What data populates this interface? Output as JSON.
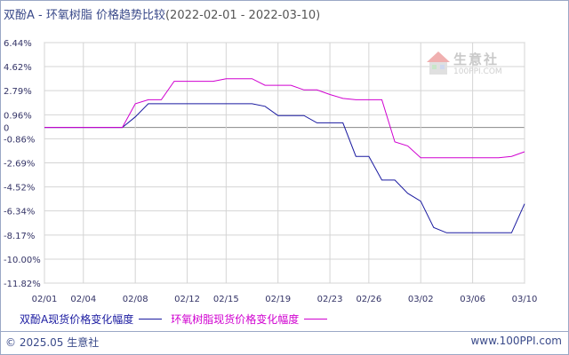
{
  "header": {
    "title": "双酚A - 环氧树脂 价格趋势比较",
    "date_range": "(2022-02-01 - 2022-03-10)"
  },
  "watermark": {
    "name": "生意社",
    "url": "100PPI.COM"
  },
  "colors": {
    "series_a": "#1a1aa0",
    "series_b": "#d000d0",
    "grid": "#d4d4d4",
    "axis_text": "#333366",
    "zero_line": "#888888"
  },
  "footer": {
    "copyright": "© 2025.05 生意社",
    "site": "www.100PPI.com"
  },
  "chart_data": {
    "type": "line",
    "y_ticks": [
      6.44,
      4.62,
      2.79,
      0.96,
      0,
      -0.86,
      -2.69,
      -4.52,
      -6.34,
      -8.17,
      -10.0,
      -11.82
    ],
    "y_tick_labels": [
      "6.44%",
      "4.62%",
      "2.79%",
      "0.96%",
      "0",
      "-0.86%",
      "-2.69%",
      "-4.52%",
      "-6.34%",
      "-8.17%",
      "-10.00%",
      "-11.82%"
    ],
    "ylim": [
      -11.82,
      6.44
    ],
    "x_range": [
      "02/01",
      "03/10"
    ],
    "x_tick_labels": [
      "02/01",
      "02/04",
      "02/08",
      "02/12",
      "02/15",
      "02/19",
      "02/23",
      "02/26",
      "03/02",
      "03/06",
      "03/10"
    ],
    "grid": true,
    "legend_position": "bottom",
    "series": [
      {
        "name": "双酚A现货价格变化幅度",
        "color": "#1a1aa0",
        "points": [
          [
            "02/01",
            0
          ],
          [
            "02/07",
            0
          ],
          [
            "02/08",
            0.8
          ],
          [
            "02/09",
            1.8
          ],
          [
            "02/11",
            1.8
          ],
          [
            "02/17",
            1.8
          ],
          [
            "02/18",
            1.6
          ],
          [
            "02/19",
            0.9
          ],
          [
            "02/21",
            0.9
          ],
          [
            "02/22",
            0.35
          ],
          [
            "02/24",
            0.35
          ],
          [
            "02/25",
            -2.2
          ],
          [
            "02/26",
            -2.2
          ],
          [
            "02/27",
            -4.0
          ],
          [
            "02/28",
            -4.0
          ],
          [
            "03/01",
            -5.0
          ],
          [
            "03/02",
            -5.6
          ],
          [
            "03/03",
            -7.6
          ],
          [
            "03/04",
            -8.0
          ],
          [
            "03/09",
            -8.0
          ],
          [
            "03/10",
            -5.8
          ],
          [
            "03/13",
            -5.8
          ]
        ]
      },
      {
        "name": "环氧树脂现货价格变化幅度",
        "color": "#d000d0",
        "points": [
          [
            "02/01",
            0
          ],
          [
            "02/07",
            0
          ],
          [
            "02/08",
            1.8
          ],
          [
            "02/09",
            2.1
          ],
          [
            "02/10",
            2.1
          ],
          [
            "02/11",
            3.5
          ],
          [
            "02/13",
            3.5
          ],
          [
            "02/14",
            3.5
          ],
          [
            "02/15",
            3.7
          ],
          [
            "02/17",
            3.7
          ],
          [
            "02/18",
            3.2
          ],
          [
            "02/20",
            3.2
          ],
          [
            "02/21",
            2.85
          ],
          [
            "02/22",
            2.85
          ],
          [
            "02/23",
            2.5
          ],
          [
            "02/24",
            2.2
          ],
          [
            "02/25",
            2.1
          ],
          [
            "02/27",
            2.1
          ],
          [
            "02/28",
            -1.1
          ],
          [
            "03/01",
            -1.4
          ],
          [
            "03/02",
            -2.3
          ],
          [
            "03/03",
            -2.3
          ],
          [
            "03/08",
            -2.3
          ],
          [
            "03/09",
            -2.2
          ],
          [
            "03/10",
            -1.85
          ],
          [
            "03/13",
            -1.85
          ]
        ]
      }
    ]
  }
}
